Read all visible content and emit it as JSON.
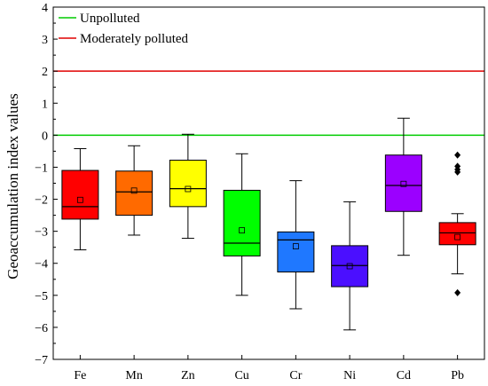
{
  "chart_data": {
    "type": "box",
    "ylabel": "Geoaccumulation index values",
    "xlabel": "",
    "ylim": [
      -7,
      4
    ],
    "yticks": [
      -7,
      -6,
      -5,
      -4,
      -3,
      -2,
      -1,
      0,
      1,
      2,
      3,
      4
    ],
    "grid": false,
    "legend_position": "top-left",
    "reference_lines": [
      {
        "name": "Unpolluted",
        "y": 0,
        "color": "#00cc00"
      },
      {
        "name": "Moderately polluted",
        "y": 2,
        "color": "#e00000"
      }
    ],
    "categories": [
      "Fe",
      "Mn",
      "Zn",
      "Cu",
      "Cr",
      "Ni",
      "Cd",
      "Pb"
    ],
    "boxes": [
      {
        "category": "Fe",
        "whisker_low": -3.58,
        "q1": -2.62,
        "median": -2.23,
        "mean": -2.02,
        "q3": -1.1,
        "whisker_high": -0.42,
        "outliers": [],
        "color": "#ff0000"
      },
      {
        "category": "Mn",
        "whisker_low": -3.12,
        "q1": -2.5,
        "median": -1.77,
        "mean": -1.73,
        "q3": -1.12,
        "whisker_high": -0.33,
        "outliers": [],
        "color": "#ff6a00"
      },
      {
        "category": "Zn",
        "whisker_low": -3.22,
        "q1": -2.23,
        "median": -1.67,
        "mean": -1.68,
        "q3": -0.78,
        "whisker_high": 0.03,
        "outliers": [],
        "color": "#ffff00"
      },
      {
        "category": "Cu",
        "whisker_low": -5.0,
        "q1": -3.77,
        "median": -3.37,
        "mean": -2.97,
        "q3": -1.72,
        "whisker_high": -0.58,
        "outliers": [],
        "color": "#00ff00"
      },
      {
        "category": "Cr",
        "whisker_low": -5.42,
        "q1": -4.27,
        "median": -3.27,
        "mean": -3.47,
        "q3": -3.02,
        "whisker_high": -1.42,
        "outliers": [],
        "color": "#1f78ff"
      },
      {
        "category": "Ni",
        "whisker_low": -6.08,
        "q1": -4.73,
        "median": -4.07,
        "mean": -4.09,
        "q3": -3.45,
        "whisker_high": -2.08,
        "outliers": [],
        "color": "#4b0fff"
      },
      {
        "category": "Cd",
        "whisker_low": -3.75,
        "q1": -2.38,
        "median": -1.57,
        "mean": -1.52,
        "q3": -0.62,
        "whisker_high": 0.53,
        "outliers": [],
        "color": "#9b00ff"
      },
      {
        "category": "Pb",
        "whisker_low": -4.33,
        "q1": -3.42,
        "median": -3.05,
        "mean": -3.18,
        "q3": -2.73,
        "whisker_high": -2.45,
        "outliers": [
          -0.62,
          -0.97,
          -1.07,
          -1.15,
          -4.92
        ],
        "color": "#ff0000"
      }
    ]
  }
}
